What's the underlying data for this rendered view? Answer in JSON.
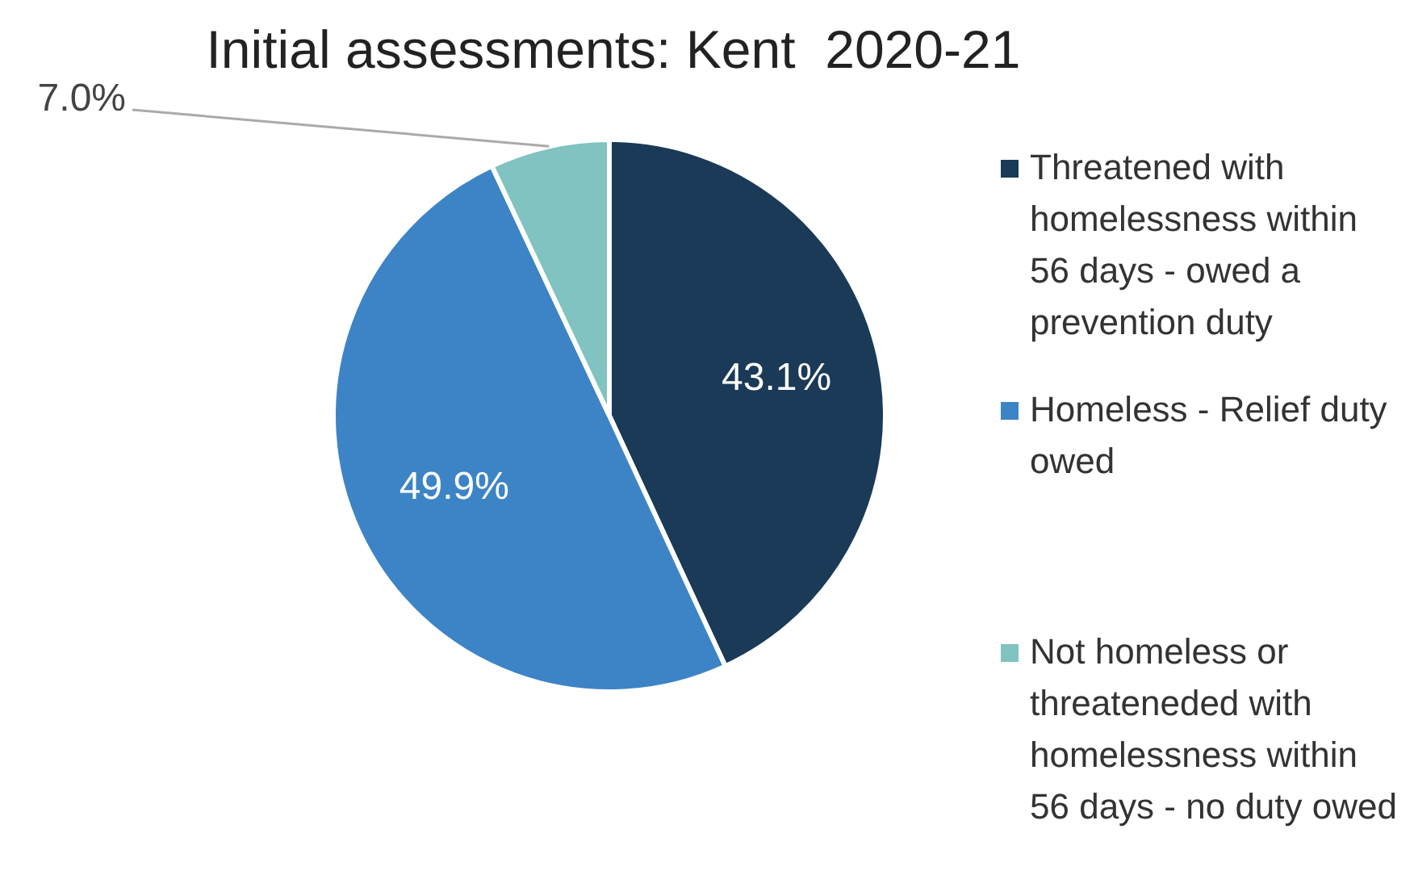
{
  "chart_data": {
    "type": "pie",
    "title": "Initial assessments: Kent  2020-21",
    "categories": [
      "Threatened with homelessness within 56 days - owed a prevention duty",
      "Homeless - Relief duty owed",
      "Not homeless or threateneded with homelessness within 56 days - no duty owed"
    ],
    "values": [
      43.1,
      49.9,
      7.0
    ],
    "colors": [
      "#1a3a57",
      "#3d84c6",
      "#80c3c1"
    ],
    "value_labels": [
      "43.1%",
      "49.9%",
      "7.0%"
    ],
    "legend": "right"
  }
}
